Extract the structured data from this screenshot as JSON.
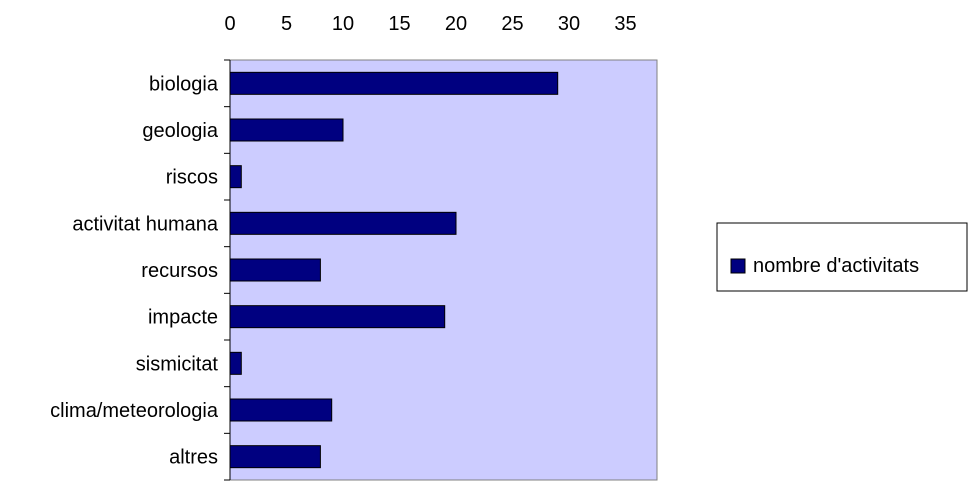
{
  "chart_data": {
    "type": "bar",
    "orientation": "horizontal",
    "categories": [
      "biologia",
      "geologia",
      "riscos",
      "activitat humana",
      "recursos",
      "impacte",
      "sismicitat",
      "clima/meteorologia",
      "altres"
    ],
    "series": [
      {
        "name": "nombre d'activitats",
        "values": [
          29,
          10,
          1,
          20,
          8,
          19,
          1,
          9,
          8
        ]
      }
    ],
    "x_ticks": [
      "0",
      "5",
      "10",
      "15",
      "20",
      "25",
      "30",
      "35"
    ],
    "xlim": [
      0,
      38
    ],
    "x_axis_position": "top",
    "grid": false,
    "legend_position": "right",
    "colors": {
      "plot_background": "#ccccff",
      "bar_fill": "#000080",
      "bar_stroke": "#000000"
    }
  }
}
